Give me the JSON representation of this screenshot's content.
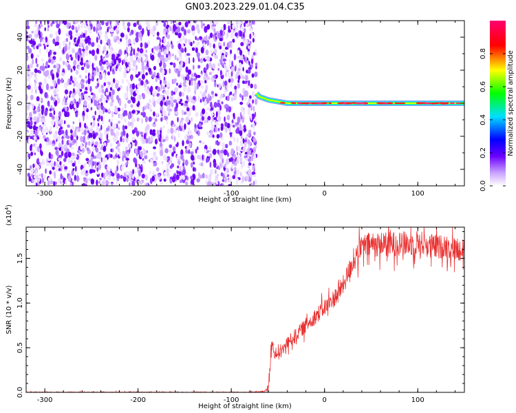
{
  "title": "GN03.2023.229.01.04.C35",
  "chart_data": [
    {
      "type": "heatmap",
      "xlabel": "Height of straight line (km)",
      "ylabel": "Frequency (Hz)",
      "xlim": [
        -320,
        150
      ],
      "ylim": [
        -50,
        50
      ],
      "xticks": [
        -300,
        -200,
        -100,
        0,
        100
      ],
      "yticks": [
        -40,
        -20,
        0,
        20,
        40
      ],
      "noise_region_x": [
        -320,
        -73
      ],
      "signal_line": [
        [
          -73,
          6
        ],
        [
          -70,
          4
        ],
        [
          -65,
          3
        ],
        [
          -60,
          2
        ],
        [
          -50,
          1
        ],
        [
          -40,
          0
        ],
        [
          -20,
          0
        ],
        [
          0,
          0
        ],
        [
          20,
          0
        ],
        [
          50,
          0
        ],
        [
          100,
          0
        ],
        [
          150,
          0
        ]
      ],
      "colorbar": {
        "label": "Normalized spectral amplitude",
        "range": [
          0,
          1
        ],
        "ticks": [
          "0.0",
          "0.2",
          "0.4",
          "0.6",
          "0.8"
        ],
        "colors": [
          "#ffffff",
          "#6a00ff",
          "#0000ff",
          "#00e0ff",
          "#00ff00",
          "#ffff00",
          "#ff0000",
          "#ff0080"
        ]
      },
      "grid": false
    },
    {
      "type": "line",
      "xlabel": "Height of straight line (km)",
      "ylabel": "SNR (10 * v/v)",
      "scale_label": "(x10",
      "scale_exp": "4",
      "scale_close": ")",
      "xlim": [
        -320,
        150
      ],
      "ylim": [
        0,
        1.85
      ],
      "xticks": [
        -300,
        -200,
        -100,
        0,
        100
      ],
      "yticks": [
        "0.0",
        "0.5",
        "1.0",
        "1.5"
      ],
      "color": "#e83030",
      "series": [
        {
          "x": [
            -320,
            -280,
            -240,
            -200,
            -160,
            -120,
            -80,
            -65,
            -60,
            -58,
            -55,
            -50,
            -40,
            -30,
            -20,
            -10,
            0,
            10,
            20,
            30,
            40,
            50,
            60,
            70,
            80,
            90,
            100,
            110,
            120,
            130,
            140,
            150
          ],
          "y": [
            0.0,
            0.0,
            0.0,
            0.0,
            0.0,
            0.0,
            0.0,
            0.01,
            0.05,
            0.35,
            0.45,
            0.4,
            0.55,
            0.65,
            0.75,
            0.85,
            0.95,
            1.05,
            1.2,
            1.45,
            1.63,
            1.65,
            1.66,
            1.66,
            1.67,
            1.66,
            1.68,
            1.65,
            1.62,
            1.64,
            1.6,
            1.62
          ]
        }
      ]
    }
  ]
}
